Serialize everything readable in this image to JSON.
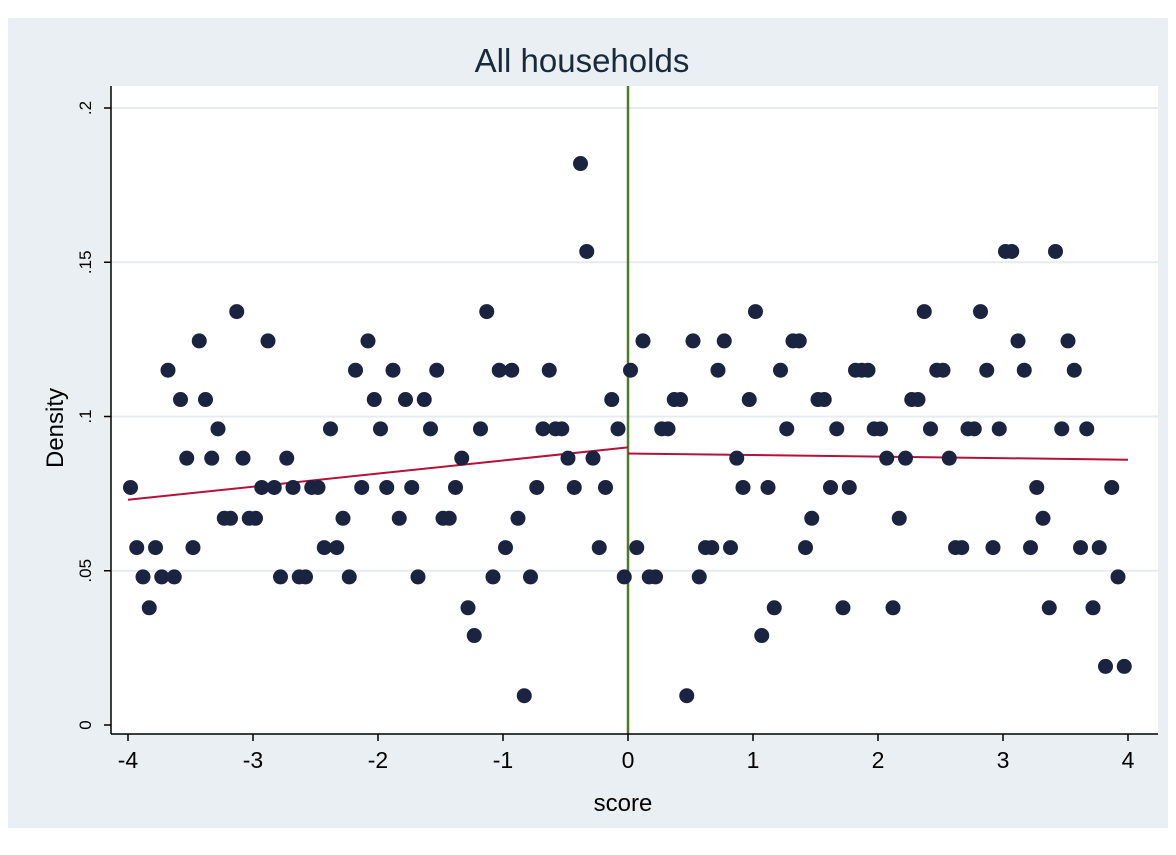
{
  "chart_data": {
    "type": "scatter",
    "title": "All households",
    "xlabel": "score",
    "ylabel": "Density",
    "xlim": [
      -4,
      4
    ],
    "ylim": [
      0,
      0.2
    ],
    "x_ticks": [
      -4,
      -3,
      -2,
      -1,
      0,
      1,
      2,
      3,
      4
    ],
    "x_tick_labels": [
      "-4",
      "-3",
      "-2",
      "-1",
      "0",
      "1",
      "2",
      "3",
      "4"
    ],
    "y_ticks": [
      0,
      0.05,
      0.1,
      0.15,
      0.2
    ],
    "y_tick_labels": [
      "0",
      ".05",
      ".1",
      ".15",
      ".2"
    ],
    "grid": "horizontal",
    "cutoff_line": {
      "x": 0,
      "color": "#4f7a28"
    },
    "fit_lines": [
      {
        "x": [
          -4,
          0
        ],
        "y": [
          0.073,
          0.09
        ],
        "color": "#b3123a"
      },
      {
        "x": [
          0,
          4
        ],
        "y": [
          0.088,
          0.086
        ],
        "color": "#b3123a"
      }
    ],
    "marker_color": "#1a2340",
    "points": [
      {
        "x": -3.98,
        "y": 0.077
      },
      {
        "x": -3.93,
        "y": 0.0575
      },
      {
        "x": -3.88,
        "y": 0.048
      },
      {
        "x": -3.83,
        "y": 0.038
      },
      {
        "x": -3.78,
        "y": 0.0575
      },
      {
        "x": -3.73,
        "y": 0.048
      },
      {
        "x": -3.68,
        "y": 0.115
      },
      {
        "x": -3.63,
        "y": 0.048
      },
      {
        "x": -3.58,
        "y": 0.1055
      },
      {
        "x": -3.53,
        "y": 0.0865
      },
      {
        "x": -3.48,
        "y": 0.0575
      },
      {
        "x": -3.43,
        "y": 0.1245
      },
      {
        "x": -3.38,
        "y": 0.1055
      },
      {
        "x": -3.33,
        "y": 0.0865
      },
      {
        "x": -3.28,
        "y": 0.096
      },
      {
        "x": -3.23,
        "y": 0.067
      },
      {
        "x": -3.18,
        "y": 0.067
      },
      {
        "x": -3.13,
        "y": 0.134
      },
      {
        "x": -3.08,
        "y": 0.0865
      },
      {
        "x": -3.03,
        "y": 0.067
      },
      {
        "x": -2.98,
        "y": 0.067
      },
      {
        "x": -2.93,
        "y": 0.077
      },
      {
        "x": -2.88,
        "y": 0.1245
      },
      {
        "x": -2.83,
        "y": 0.077
      },
      {
        "x": -2.78,
        "y": 0.048
      },
      {
        "x": -2.73,
        "y": 0.0865
      },
      {
        "x": -2.68,
        "y": 0.077
      },
      {
        "x": -2.63,
        "y": 0.048
      },
      {
        "x": -2.58,
        "y": 0.048
      },
      {
        "x": -2.53,
        "y": 0.077
      },
      {
        "x": -2.48,
        "y": 0.077
      },
      {
        "x": -2.43,
        "y": 0.0575
      },
      {
        "x": -2.38,
        "y": 0.096
      },
      {
        "x": -2.33,
        "y": 0.0575
      },
      {
        "x": -2.28,
        "y": 0.067
      },
      {
        "x": -2.23,
        "y": 0.048
      },
      {
        "x": -2.18,
        "y": 0.115
      },
      {
        "x": -2.13,
        "y": 0.077
      },
      {
        "x": -2.08,
        "y": 0.1245
      },
      {
        "x": -2.03,
        "y": 0.1055
      },
      {
        "x": -1.98,
        "y": 0.096
      },
      {
        "x": -1.93,
        "y": 0.077
      },
      {
        "x": -1.88,
        "y": 0.115
      },
      {
        "x": -1.83,
        "y": 0.067
      },
      {
        "x": -1.78,
        "y": 0.1055
      },
      {
        "x": -1.73,
        "y": 0.077
      },
      {
        "x": -1.68,
        "y": 0.048
      },
      {
        "x": -1.63,
        "y": 0.1055
      },
      {
        "x": -1.58,
        "y": 0.096
      },
      {
        "x": -1.53,
        "y": 0.115
      },
      {
        "x": -1.48,
        "y": 0.067
      },
      {
        "x": -1.43,
        "y": 0.067
      },
      {
        "x": -1.38,
        "y": 0.077
      },
      {
        "x": -1.33,
        "y": 0.0865
      },
      {
        "x": -1.28,
        "y": 0.038
      },
      {
        "x": -1.23,
        "y": 0.029
      },
      {
        "x": -1.18,
        "y": 0.096
      },
      {
        "x": -1.13,
        "y": 0.134
      },
      {
        "x": -1.08,
        "y": 0.048
      },
      {
        "x": -1.03,
        "y": 0.115
      },
      {
        "x": -0.98,
        "y": 0.0575
      },
      {
        "x": -0.93,
        "y": 0.115
      },
      {
        "x": -0.88,
        "y": 0.067
      },
      {
        "x": -0.83,
        "y": 0.0095
      },
      {
        "x": -0.78,
        "y": 0.048
      },
      {
        "x": -0.73,
        "y": 0.077
      },
      {
        "x": -0.68,
        "y": 0.096
      },
      {
        "x": -0.63,
        "y": 0.115
      },
      {
        "x": -0.58,
        "y": 0.096
      },
      {
        "x": -0.53,
        "y": 0.096
      },
      {
        "x": -0.48,
        "y": 0.0865
      },
      {
        "x": -0.43,
        "y": 0.077
      },
      {
        "x": -0.38,
        "y": 0.182
      },
      {
        "x": -0.33,
        "y": 0.1535
      },
      {
        "x": -0.28,
        "y": 0.0865
      },
      {
        "x": -0.23,
        "y": 0.0575
      },
      {
        "x": -0.18,
        "y": 0.077
      },
      {
        "x": -0.13,
        "y": 0.1055
      },
      {
        "x": -0.08,
        "y": 0.096
      },
      {
        "x": -0.03,
        "y": 0.048
      },
      {
        "x": 0.02,
        "y": 0.115
      },
      {
        "x": 0.07,
        "y": 0.0575
      },
      {
        "x": 0.12,
        "y": 0.1245
      },
      {
        "x": 0.17,
        "y": 0.048
      },
      {
        "x": 0.22,
        "y": 0.048
      },
      {
        "x": 0.27,
        "y": 0.096
      },
      {
        "x": 0.32,
        "y": 0.096
      },
      {
        "x": 0.37,
        "y": 0.1055
      },
      {
        "x": 0.42,
        "y": 0.1055
      },
      {
        "x": 0.47,
        "y": 0.0095
      },
      {
        "x": 0.52,
        "y": 0.1245
      },
      {
        "x": 0.57,
        "y": 0.048
      },
      {
        "x": 0.62,
        "y": 0.0575
      },
      {
        "x": 0.67,
        "y": 0.0575
      },
      {
        "x": 0.72,
        "y": 0.115
      },
      {
        "x": 0.77,
        "y": 0.1245
      },
      {
        "x": 0.82,
        "y": 0.0575
      },
      {
        "x": 0.87,
        "y": 0.0865
      },
      {
        "x": 0.92,
        "y": 0.077
      },
      {
        "x": 0.97,
        "y": 0.1055
      },
      {
        "x": 1.02,
        "y": 0.134
      },
      {
        "x": 1.07,
        "y": 0.029
      },
      {
        "x": 1.12,
        "y": 0.077
      },
      {
        "x": 1.17,
        "y": 0.038
      },
      {
        "x": 1.22,
        "y": 0.115
      },
      {
        "x": 1.27,
        "y": 0.096
      },
      {
        "x": 1.32,
        "y": 0.1245
      },
      {
        "x": 1.37,
        "y": 0.1245
      },
      {
        "x": 1.42,
        "y": 0.0575
      },
      {
        "x": 1.47,
        "y": 0.067
      },
      {
        "x": 1.52,
        "y": 0.1055
      },
      {
        "x": 1.57,
        "y": 0.1055
      },
      {
        "x": 1.62,
        "y": 0.077
      },
      {
        "x": 1.67,
        "y": 0.096
      },
      {
        "x": 1.72,
        "y": 0.038
      },
      {
        "x": 1.77,
        "y": 0.077
      },
      {
        "x": 1.82,
        "y": 0.115
      },
      {
        "x": 1.87,
        "y": 0.115
      },
      {
        "x": 1.92,
        "y": 0.115
      },
      {
        "x": 1.97,
        "y": 0.096
      },
      {
        "x": 2.02,
        "y": 0.096
      },
      {
        "x": 2.07,
        "y": 0.0865
      },
      {
        "x": 2.12,
        "y": 0.038
      },
      {
        "x": 2.17,
        "y": 0.067
      },
      {
        "x": 2.22,
        "y": 0.0865
      },
      {
        "x": 2.27,
        "y": 0.1055
      },
      {
        "x": 2.32,
        "y": 0.1055
      },
      {
        "x": 2.37,
        "y": 0.134
      },
      {
        "x": 2.42,
        "y": 0.096
      },
      {
        "x": 2.47,
        "y": 0.115
      },
      {
        "x": 2.52,
        "y": 0.115
      },
      {
        "x": 2.57,
        "y": 0.0865
      },
      {
        "x": 2.62,
        "y": 0.0575
      },
      {
        "x": 2.67,
        "y": 0.0575
      },
      {
        "x": 2.72,
        "y": 0.096
      },
      {
        "x": 2.77,
        "y": 0.096
      },
      {
        "x": 2.82,
        "y": 0.134
      },
      {
        "x": 2.87,
        "y": 0.115
      },
      {
        "x": 2.92,
        "y": 0.0575
      },
      {
        "x": 2.97,
        "y": 0.096
      },
      {
        "x": 3.02,
        "y": 0.1535
      },
      {
        "x": 3.07,
        "y": 0.1535
      },
      {
        "x": 3.12,
        "y": 0.1245
      },
      {
        "x": 3.17,
        "y": 0.115
      },
      {
        "x": 3.22,
        "y": 0.0575
      },
      {
        "x": 3.27,
        "y": 0.077
      },
      {
        "x": 3.32,
        "y": 0.067
      },
      {
        "x": 3.37,
        "y": 0.038
      },
      {
        "x": 3.42,
        "y": 0.1535
      },
      {
        "x": 3.47,
        "y": 0.096
      },
      {
        "x": 3.52,
        "y": 0.1245
      },
      {
        "x": 3.57,
        "y": 0.115
      },
      {
        "x": 3.62,
        "y": 0.0575
      },
      {
        "x": 3.67,
        "y": 0.096
      },
      {
        "x": 3.72,
        "y": 0.038
      },
      {
        "x": 3.77,
        "y": 0.0575
      },
      {
        "x": 3.82,
        "y": 0.019
      },
      {
        "x": 3.87,
        "y": 0.077
      },
      {
        "x": 3.92,
        "y": 0.048
      },
      {
        "x": 3.97,
        "y": 0.019
      }
    ]
  }
}
